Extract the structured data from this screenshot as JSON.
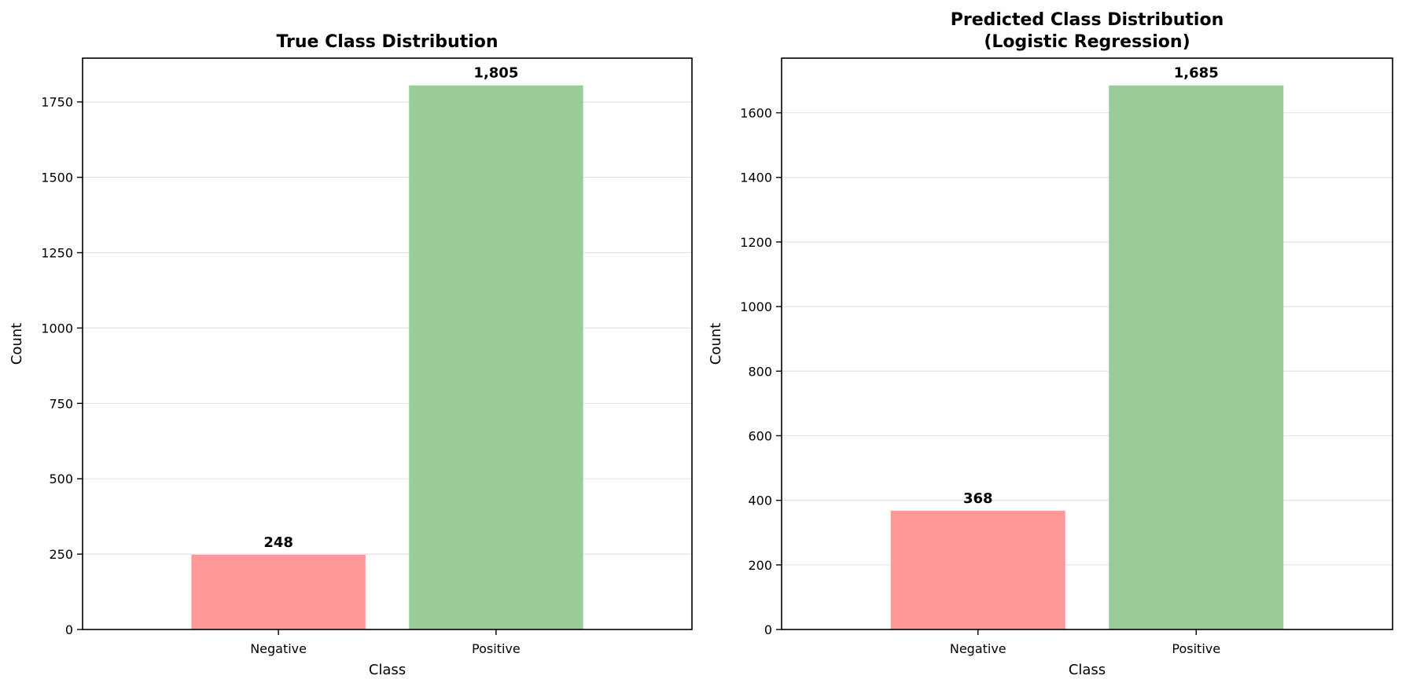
{
  "chart_data": [
    {
      "type": "bar",
      "title_lines": [
        "True Class Distribution"
      ],
      "xlabel": "Class",
      "ylabel": "Count",
      "categories": [
        "Negative",
        "Positive"
      ],
      "values": [
        248,
        1805
      ],
      "value_labels": [
        "248",
        "1,805"
      ],
      "colors": [
        "#ff9999",
        "#99cc99"
      ],
      "ylim": [
        0,
        1895.25
      ],
      "yticks": [
        0,
        250,
        500,
        750,
        1000,
        1250,
        1500,
        1750
      ],
      "ytick_labels": [
        "0",
        "250",
        "500",
        "750",
        "1000",
        "1250",
        "1500",
        "1750"
      ],
      "grid": "y"
    },
    {
      "type": "bar",
      "title_lines": [
        "Predicted Class Distribution",
        "(Logistic Regression)"
      ],
      "xlabel": "Class",
      "ylabel": "Count",
      "categories": [
        "Negative",
        "Positive"
      ],
      "values": [
        368,
        1685
      ],
      "value_labels": [
        "368",
        "1,685"
      ],
      "colors": [
        "#ff9999",
        "#99cc99"
      ],
      "ylim": [
        0,
        1769.25
      ],
      "yticks": [
        0,
        200,
        400,
        600,
        800,
        1000,
        1200,
        1400,
        1600
      ],
      "ytick_labels": [
        "0",
        "200",
        "400",
        "600",
        "800",
        "1000",
        "1200",
        "1400",
        "1600"
      ],
      "grid": "y"
    }
  ]
}
